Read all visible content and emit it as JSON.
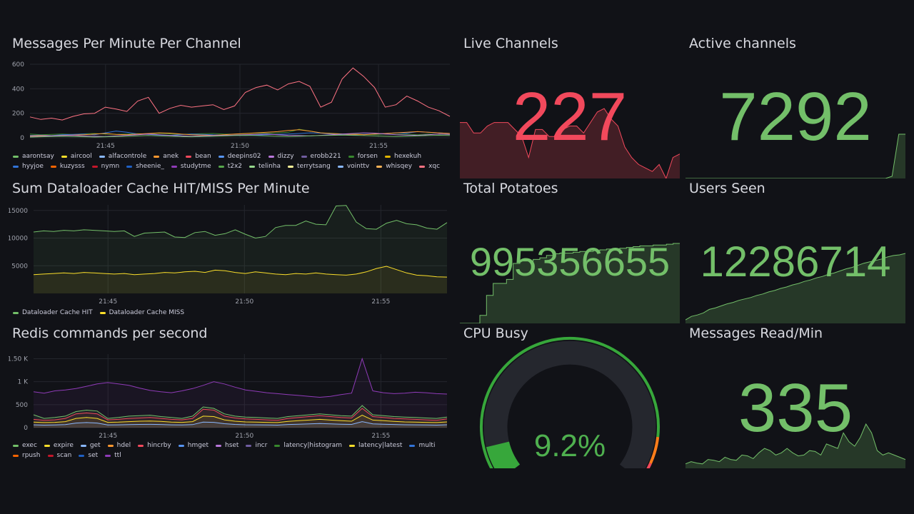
{
  "time_ticks": [
    "21:45",
    "21:50",
    "21:55"
  ],
  "panels": {
    "messages": {
      "title": "Messages Per Minute Per Channel",
      "legend": [
        {
          "name": "aarontsay",
          "color": "#73bf69"
        },
        {
          "name": "aircool",
          "color": "#fade2a"
        },
        {
          "name": "alfacontrole",
          "color": "#8ab8ff"
        },
        {
          "name": "anek",
          "color": "#ff9830"
        },
        {
          "name": "bean",
          "color": "#f2495c"
        },
        {
          "name": "deepins02",
          "color": "#5794f2"
        },
        {
          "name": "dizzy",
          "color": "#b877d9"
        },
        {
          "name": "erobb221",
          "color": "#705da0"
        },
        {
          "name": "forsen",
          "color": "#37872d"
        },
        {
          "name": "hexekuh",
          "color": "#e0b400"
        },
        {
          "name": "hyyjoe",
          "color": "#3274d9"
        },
        {
          "name": "kuzysss",
          "color": "#fa6400"
        },
        {
          "name": "nymn",
          "color": "#c4162a"
        },
        {
          "name": "sheenie_",
          "color": "#1f60c4"
        },
        {
          "name": "studytme",
          "color": "#8f3bb8"
        },
        {
          "name": "t2x2",
          "color": "#56a64b"
        },
        {
          "name": "telinha",
          "color": "#96d98d"
        },
        {
          "name": "terrytsang",
          "color": "#fff899"
        },
        {
          "name": "vointtv",
          "color": "#8ab8ff"
        },
        {
          "name": "whisqey",
          "color": "#ffb357"
        },
        {
          "name": "xqc",
          "color": "#ff7383"
        }
      ]
    },
    "dataloader": {
      "title": "Sum Dataloader Cache HIT/MISS Per Minute",
      "legend": [
        {
          "name": "Dataloader Cache HIT",
          "color": "#73bf69"
        },
        {
          "name": "Dataloader Cache MISS",
          "color": "#fade2a"
        }
      ]
    },
    "redis": {
      "title": "Redis commands per second",
      "legend": [
        {
          "name": "exec",
          "color": "#73bf69"
        },
        {
          "name": "expire",
          "color": "#fade2a"
        },
        {
          "name": "get",
          "color": "#8ab8ff"
        },
        {
          "name": "hdel",
          "color": "#ff9830"
        },
        {
          "name": "hincrby",
          "color": "#f2495c"
        },
        {
          "name": "hmget",
          "color": "#5794f2"
        },
        {
          "name": "hset",
          "color": "#b877d9"
        },
        {
          "name": "incr",
          "color": "#705da0"
        },
        {
          "name": "latency|histogram",
          "color": "#37872d"
        },
        {
          "name": "latency|latest",
          "color": "#fade2a"
        },
        {
          "name": "multi",
          "color": "#3274d9"
        },
        {
          "name": "rpush",
          "color": "#fa6400"
        },
        {
          "name": "scan",
          "color": "#c4162a"
        },
        {
          "name": "set",
          "color": "#1f60c4"
        },
        {
          "name": "ttl",
          "color": "#8f3bb8"
        }
      ]
    },
    "live_channels": {
      "title": "Live Channels",
      "value": "227",
      "color": "#f2495c"
    },
    "active_channels": {
      "title": "Active channels",
      "value": "7292",
      "color": "#73bf69"
    },
    "total_potatoes": {
      "title": "Total Potatoes",
      "value": "995356655",
      "color": "#73bf69"
    },
    "users_seen": {
      "title": "Users Seen",
      "value": "12286714",
      "color": "#73bf69"
    },
    "cpu_busy": {
      "title": "CPU Busy",
      "value": "9.2%",
      "percent": 9.2,
      "color": "#37a73b"
    },
    "messages_read": {
      "title": "Messages Read/Min",
      "value": "335",
      "color": "#73bf69"
    }
  },
  "chart_data": [
    {
      "type": "line",
      "title": "Messages Per Minute Per Channel",
      "yticks": [
        "0",
        "200",
        "400",
        "600"
      ],
      "ylim": [
        0,
        600
      ],
      "xticks": [
        "21:45",
        "21:50",
        "21:55"
      ],
      "series": [
        {
          "name": "xqc",
          "color": "#ff7383",
          "values": [
            170,
            150,
            160,
            145,
            175,
            195,
            200,
            250,
            235,
            215,
            300,
            330,
            200,
            240,
            265,
            250,
            260,
            270,
            230,
            260,
            370,
            410,
            430,
            390,
            440,
            460,
            420,
            250,
            290,
            480,
            570,
            500,
            410,
            250,
            270,
            340,
            300,
            250,
            220,
            175
          ]
        },
        {
          "name": "forsen",
          "color": "#37872d",
          "values": [
            30,
            25,
            28,
            30,
            27,
            32,
            35,
            30,
            28,
            31,
            33,
            30,
            36,
            32,
            28,
            30,
            33,
            35,
            31,
            29,
            34,
            38,
            36,
            40,
            45,
            70,
            55,
            40,
            36,
            32,
            30,
            28,
            26,
            30,
            27,
            29,
            25,
            30,
            28,
            26
          ]
        },
        {
          "name": "hyyjoe",
          "color": "#3274d9",
          "values": [
            20,
            22,
            18,
            25,
            28,
            30,
            25,
            40,
            55,
            45,
            30,
            28,
            22,
            20,
            25,
            30,
            28,
            24,
            22,
            20,
            18,
            22,
            25,
            28,
            30,
            35,
            40,
            38,
            30,
            25,
            22,
            28,
            30,
            35,
            40,
            38,
            50,
            45,
            40,
            35
          ]
        },
        {
          "name": "anek",
          "color": "#ff9830",
          "values": [
            15,
            18,
            16,
            20,
            22,
            25,
            30,
            35,
            28,
            25,
            30,
            35,
            40,
            38,
            30,
            25,
            22,
            20,
            25,
            30,
            35,
            40,
            45,
            50,
            60,
            65,
            55,
            40,
            35,
            30,
            28,
            25,
            30,
            35,
            40,
            45,
            50,
            45,
            40,
            35
          ]
        },
        {
          "name": "dizzy",
          "color": "#b877d9",
          "values": [
            10,
            12,
            15,
            18,
            20,
            15,
            12,
            10,
            15,
            20,
            25,
            30,
            25,
            20,
            15,
            12,
            15,
            18,
            20,
            22,
            25,
            28,
            30,
            25,
            20,
            18,
            15,
            20,
            25,
            30,
            35,
            40,
            38,
            30,
            25,
            22,
            20,
            25,
            30,
            28
          ]
        },
        {
          "name": "aarontsay",
          "color": "#73bf69",
          "values": [
            5,
            8,
            10,
            12,
            10,
            8,
            6,
            8,
            10,
            12,
            15,
            18,
            15,
            12,
            10,
            8,
            10,
            12,
            15,
            18,
            20,
            18,
            15,
            12,
            10,
            12,
            15,
            18,
            20,
            22,
            20,
            18,
            15,
            12,
            10,
            12,
            15,
            18,
            20,
            18
          ]
        }
      ]
    },
    {
      "type": "area",
      "title": "Sum Dataloader Cache HIT/MISS Per Minute",
      "yticks": [
        "5000",
        "10000",
        "15000"
      ],
      "ylim": [
        0,
        16000
      ],
      "xticks": [
        "21:45",
        "21:50",
        "21:55"
      ],
      "series": [
        {
          "name": "Dataloader Cache HIT",
          "color": "#73bf69",
          "values": [
            11100,
            11300,
            11200,
            11400,
            11300,
            11500,
            11400,
            11300,
            11200,
            11300,
            10300,
            10900,
            11000,
            11100,
            10200,
            10100,
            11000,
            11200,
            10500,
            10800,
            11500,
            10700,
            10000,
            10300,
            11900,
            12300,
            12300,
            13100,
            12500,
            12400,
            15800,
            15900,
            12900,
            11700,
            11600,
            12700,
            13200,
            12600,
            12400,
            11800,
            11600,
            12800
          ]
        },
        {
          "name": "Dataloader Cache MISS",
          "color": "#fade2a",
          "values": [
            3400,
            3500,
            3600,
            3700,
            3600,
            3800,
            3700,
            3600,
            3500,
            3600,
            3400,
            3500,
            3600,
            3800,
            3700,
            3900,
            4000,
            3800,
            4200,
            4100,
            3800,
            3600,
            3900,
            3700,
            3500,
            3400,
            3600,
            3500,
            3700,
            3500,
            3400,
            3300,
            3500,
            3900,
            4500,
            4900,
            4300,
            3700,
            3300,
            3200,
            3000,
            2950
          ]
        }
      ]
    },
    {
      "type": "area",
      "title": "Redis commands per second",
      "yticks": [
        "0",
        "500",
        "1 K",
        "1.50 K"
      ],
      "ylim": [
        0,
        1600
      ],
      "xticks": [
        "21:45",
        "21:50",
        "21:55"
      ],
      "series": [
        {
          "name": "ttl",
          "color": "#8f3bb8",
          "values": [
            780,
            750,
            800,
            820,
            850,
            900,
            950,
            980,
            950,
            920,
            860,
            810,
            780,
            760,
            800,
            850,
            920,
            1000,
            950,
            880,
            820,
            790,
            760,
            740,
            720,
            700,
            680,
            660,
            680,
            720,
            750,
            1500,
            800,
            760,
            740,
            750,
            770,
            760,
            740,
            730
          ]
        },
        {
          "name": "exec",
          "color": "#73bf69",
          "values": [
            280,
            200,
            220,
            250,
            350,
            380,
            360,
            200,
            220,
            250,
            260,
            270,
            240,
            220,
            200,
            250,
            450,
            420,
            300,
            250,
            230,
            220,
            210,
            200,
            240,
            260,
            280,
            300,
            280,
            260,
            250,
            480,
            280,
            260,
            240,
            230,
            220,
            210,
            200,
            230
          ]
        },
        {
          "name": "hincrby",
          "color": "#f2495c",
          "values": [
            180,
            160,
            170,
            200,
            300,
            320,
            300,
            170,
            180,
            200,
            210,
            220,
            200,
            180,
            170,
            200,
            400,
            380,
            250,
            210,
            190,
            180,
            170,
            160,
            200,
            220,
            240,
            260,
            240,
            220,
            210,
            420,
            240,
            220,
            200,
            190,
            180,
            170,
            160,
            190
          ]
        },
        {
          "name": "expire",
          "color": "#fade2a",
          "values": [
            120,
            110,
            115,
            130,
            200,
            220,
            200,
            115,
            120,
            130,
            140,
            145,
            135,
            120,
            115,
            130,
            250,
            240,
            170,
            140,
            125,
            120,
            115,
            110,
            135,
            150,
            165,
            180,
            165,
            150,
            140,
            270,
            165,
            150,
            135,
            125,
            120,
            115,
            110,
            125
          ]
        },
        {
          "name": "get",
          "color": "#8ab8ff",
          "values": [
            60,
            55,
            58,
            65,
            100,
            110,
            100,
            58,
            60,
            65,
            70,
            72,
            68,
            60,
            58,
            65,
            120,
            115,
            85,
            70,
            62,
            60,
            58,
            55,
            68,
            75,
            82,
            90,
            82,
            75,
            70,
            130,
            82,
            75,
            68,
            62,
            60,
            58,
            55,
            62
          ]
        }
      ]
    },
    {
      "type": "area",
      "title": "Live Channels sparkline",
      "ylim": [
        0,
        1
      ],
      "values": [
        0.8,
        0.8,
        0.65,
        0.65,
        0.75,
        0.8,
        0.8,
        0.8,
        0.7,
        0.6,
        0.3,
        0.7,
        0.7,
        0.6,
        0.6,
        0.7,
        0.75,
        0.75,
        0.65,
        0.8,
        0.95,
        1.0,
        0.85,
        0.75,
        0.45,
        0.3,
        0.2,
        0.15,
        0.1,
        0.2,
        0.0,
        0.3,
        0.35
      ]
    },
    {
      "type": "area",
      "title": "Active channels sparkline",
      "ylim": [
        0,
        1
      ],
      "values": [
        0,
        0,
        0,
        0,
        0,
        0,
        0,
        0,
        0,
        0,
        0,
        0,
        0,
        0,
        0,
        0,
        0,
        0,
        0,
        0,
        0,
        0,
        0,
        0,
        0,
        0,
        0,
        0,
        0,
        0,
        0,
        0.05,
        1.0,
        1.0
      ]
    },
    {
      "type": "area",
      "title": "Total Potatoes sparkline",
      "ylim": [
        0,
        1
      ],
      "values": [
        0,
        0,
        0,
        0.1,
        0.35,
        0.5,
        0.5,
        0.55,
        0.75,
        0.78,
        0.78,
        0.8,
        0.82,
        0.85,
        0.87,
        0.88,
        0.88,
        0.89,
        0.9,
        0.9,
        0.91,
        0.92,
        0.93,
        0.93,
        0.94,
        0.95,
        0.96,
        0.97,
        0.97,
        0.98,
        0.98,
        0.99,
        1.0,
        1.0
      ]
    },
    {
      "type": "area",
      "title": "Users Seen sparkline",
      "ylim": [
        0,
        1
      ],
      "values": [
        0.05,
        0.1,
        0.12,
        0.15,
        0.2,
        0.22,
        0.25,
        0.28,
        0.3,
        0.33,
        0.35,
        0.37,
        0.4,
        0.42,
        0.45,
        0.47,
        0.5,
        0.52,
        0.55,
        0.57,
        0.6,
        0.62,
        0.65,
        0.67,
        0.7,
        0.72,
        0.75,
        0.78,
        0.8,
        0.83,
        0.86,
        0.88,
        0.9,
        0.92,
        0.95,
        0.97,
        0.98,
        1.0
      ]
    },
    {
      "type": "area",
      "title": "Messages Read/Min sparkline",
      "ylim": [
        0,
        1
      ],
      "values": [
        0.1,
        0.15,
        0.12,
        0.1,
        0.2,
        0.18,
        0.15,
        0.25,
        0.2,
        0.18,
        0.3,
        0.28,
        0.22,
        0.35,
        0.45,
        0.4,
        0.3,
        0.35,
        0.45,
        0.35,
        0.28,
        0.3,
        0.4,
        0.38,
        0.3,
        0.55,
        0.5,
        0.45,
        0.8,
        0.6,
        0.5,
        0.7,
        1.0,
        0.8,
        0.4,
        0.3,
        0.35,
        0.3,
        0.25,
        0.2
      ]
    }
  ]
}
